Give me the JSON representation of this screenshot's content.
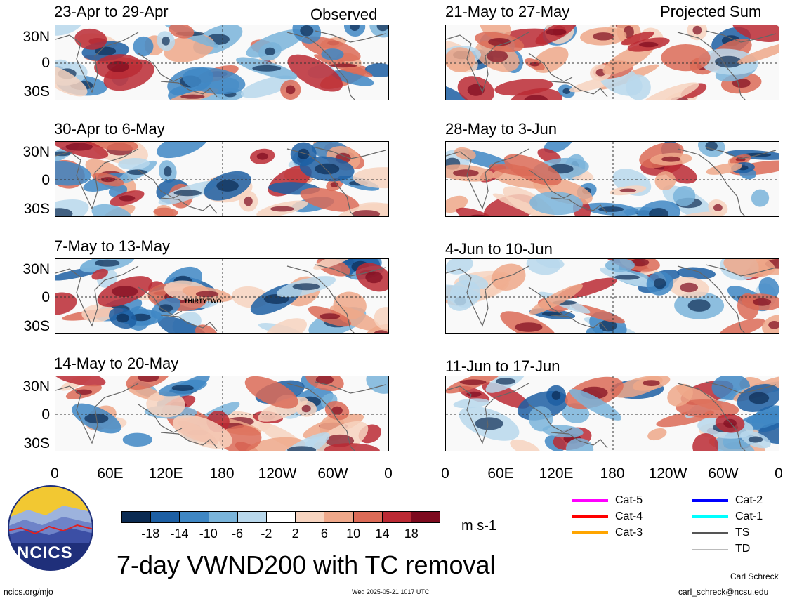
{
  "panels_left": [
    {
      "title": "23-Apr to 29-Apr",
      "tag": "Observed"
    },
    {
      "title": "30-Apr to 6-May",
      "tag": ""
    },
    {
      "title": "7-May to 13-May",
      "tag": "",
      "annotation": "THIRTYTWO"
    },
    {
      "title": "14-May to 20-May",
      "tag": ""
    }
  ],
  "panels_right": [
    {
      "title": "21-May to 27-May",
      "tag": "Projected Sum"
    },
    {
      "title": "28-May to 3-Jun",
      "tag": ""
    },
    {
      "title": "4-Jun to 10-Jun",
      "tag": ""
    },
    {
      "title": "11-Jun to 17-Jun",
      "tag": ""
    }
  ],
  "y_ticks": [
    "30N",
    "0",
    "30S"
  ],
  "x_ticks": [
    "0",
    "60E",
    "120E",
    "180",
    "120W",
    "60W",
    "0"
  ],
  "colorbar": {
    "labels": [
      "-18",
      "-14",
      "-10",
      "-6",
      "-2",
      "2",
      "6",
      "10",
      "14",
      "18"
    ],
    "unit": "m s-1",
    "colors": [
      "#0b2b52",
      "#1d5fa3",
      "#3f87c4",
      "#7ab4da",
      "#b9d8ec",
      "#ffffff",
      "#f7d4c0",
      "#efa88a",
      "#dc6b57",
      "#bb2a34",
      "#7d0a1e"
    ]
  },
  "legend": [
    {
      "label": "Cat-5",
      "color": "#ff00ff"
    },
    {
      "label": "Cat-2",
      "color": "#0000ff"
    },
    {
      "label": "Cat-4",
      "color": "#ff0000"
    },
    {
      "label": "Cat-1",
      "color": "#00ffff"
    },
    {
      "label": "Cat-3",
      "color": "#ffa500"
    },
    {
      "label": "TS",
      "color": "#555555"
    },
    {
      "label": "TD",
      "color": "#bbbbbb"
    }
  ],
  "main_title": "7-day VWND200 with TC removal",
  "logo_text": "NCICS",
  "footer": {
    "url": "ncics.org/mjo",
    "timestamp": "Wed 2025-05-21 1017 UTC",
    "author": "Carl Schreck",
    "email": "carl_schreck@ncsu.edu"
  }
}
